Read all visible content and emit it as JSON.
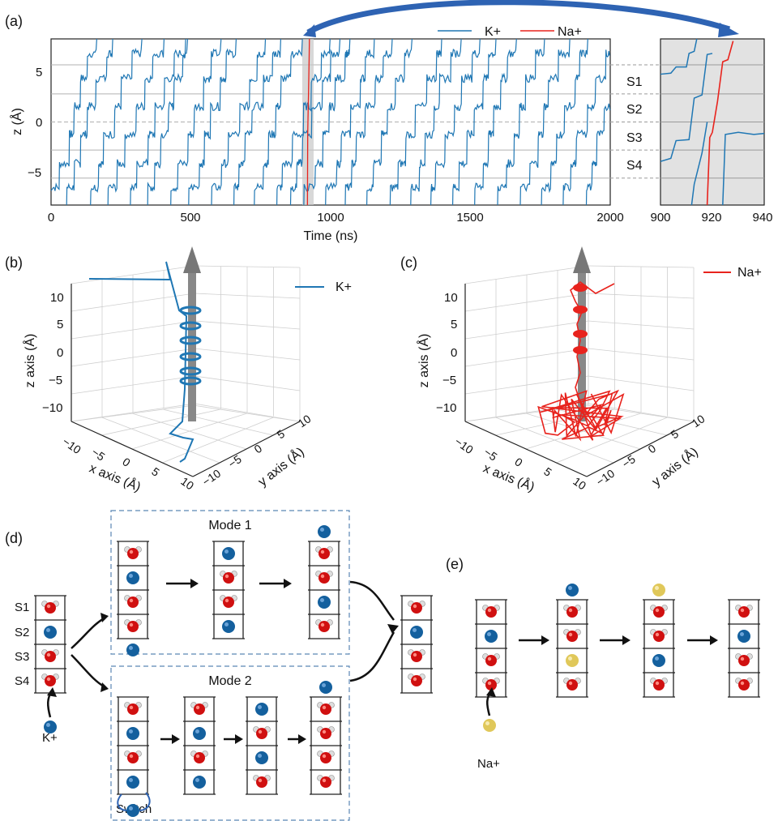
{
  "panel_labels": {
    "a": "(a)",
    "b": "(b)",
    "c": "(c)",
    "d": "(d)",
    "e": "(e)"
  },
  "colors": {
    "K": "#1f77b4",
    "Na": "#e8231d",
    "arrow_blue": "#2e63b3",
    "water_O": "#d01010",
    "K_ball": "#14609e",
    "Na_ball": "#e0c85a"
  },
  "chart_data": [
    {
      "type": "line",
      "panel": "a",
      "title": "",
      "xlabel": "Time (ns)",
      "ylabel": "z (Å)",
      "xlim": [
        0,
        2000
      ],
      "ylim": [
        -8,
        8
      ],
      "x_ticks": [
        "0",
        "500",
        "1000",
        "1500",
        "2000"
      ],
      "y_ticks": [
        "5",
        "0",
        "−5"
      ],
      "legend": {
        "position": "top-right",
        "entries": [
          "K+",
          "Na+"
        ]
      },
      "site_levels": [
        {
          "name": "S1",
          "z": 4.1
        },
        {
          "name": "S2",
          "z": 1.1
        },
        {
          "name": "S3",
          "z": -1.6
        },
        {
          "name": "S4",
          "z": -4.3
        }
      ],
      "gray_lines_z": [
        5.5,
        2.7,
        0.0,
        -2.7,
        -5.4
      ],
      "highlight_window": [
        900,
        940
      ],
      "series": [
        {
          "name": "K+",
          "description": "stepwise permeation traces, ~25 ions",
          "crossing_times_ns": [
            30,
            100,
            185,
            250,
            330,
            390,
            470,
            540,
            620,
            700,
            770,
            850,
            900,
            950,
            1030,
            1100,
            1180,
            1260,
            1330,
            1400,
            1480,
            1560,
            1640,
            1720,
            1800,
            1880,
            1960
          ]
        },
        {
          "name": "Na+",
          "description": "single Na+ permeation near 920 ns",
          "crossing_times_ns": [
            920
          ]
        }
      ]
    },
    {
      "type": "line",
      "panel": "a-inset",
      "xlim": [
        900,
        940
      ],
      "x_ticks": [
        "900",
        "920",
        "940"
      ],
      "series": [
        {
          "name": "K+",
          "points": [
            [
              900,
              4.5
            ],
            [
              905,
              4.6
            ],
            [
              908,
              5.2
            ],
            [
              910,
              6.5
            ],
            [
              913,
              7.8
            ]
          ]
        },
        {
          "name": "Na+",
          "points": [
            [
              918,
              -8
            ],
            [
              919,
              -1.5
            ],
            [
              920,
              -1.0
            ],
            [
              922,
              2.0
            ],
            [
              924,
              5.8
            ],
            [
              926,
              6.0
            ],
            [
              928,
              7.8
            ]
          ]
        }
      ]
    },
    {
      "type": "scatter",
      "panel": "b",
      "xlabel": "x axis (Å)",
      "ylabel": "y axis (Å)",
      "zlabel": "z axis (Å)",
      "z_ticks": [
        "10",
        "5",
        "0",
        "−5",
        "−10"
      ],
      "xy_ticks": [
        "−10",
        "−5",
        "0",
        "5",
        "10"
      ],
      "legend": "K+",
      "note": "single K+ trajectory along pore axis"
    },
    {
      "type": "scatter",
      "panel": "c",
      "xlabel": "x axis (Å)",
      "ylabel": "y axis (Å)",
      "zlabel": "z axis (Å)",
      "z_ticks": [
        "10",
        "5",
        "0",
        "−5",
        "−10"
      ],
      "xy_ticks": [
        "−10",
        "−5",
        "0",
        "5",
        "10"
      ],
      "legend": "Na+",
      "note": "single Na+ trajectory, diffusive below filter"
    }
  ],
  "sites": [
    "S1",
    "S2",
    "S3",
    "S4"
  ],
  "legend": {
    "K": "K+",
    "Na": "Na+"
  },
  "schematic": {
    "mode1": "Mode 1",
    "mode2": "Mode 2",
    "switch": "Switch",
    "K_label": "K+",
    "Na_label": "Na+"
  }
}
